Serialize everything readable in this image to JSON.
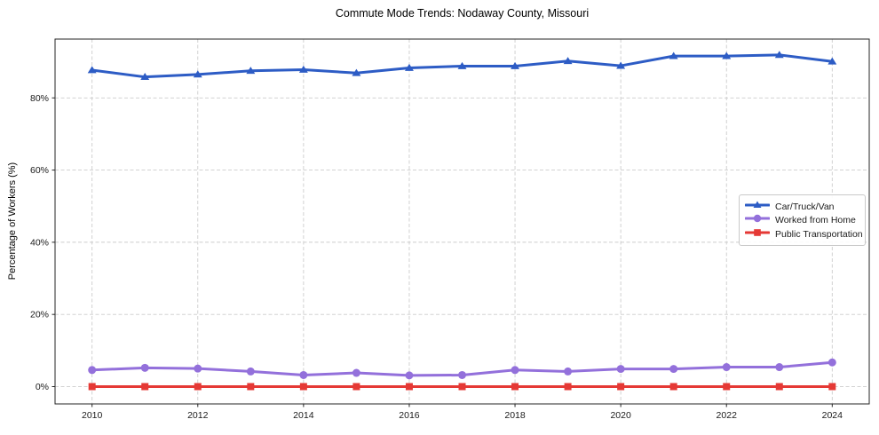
{
  "chart_data": {
    "type": "line",
    "title": "Commute Mode Trends: Nodaway County, Missouri",
    "xlabel": "",
    "ylabel": "Percentage of Workers (%)",
    "x": [
      2010,
      2011,
      2012,
      2013,
      2014,
      2015,
      2016,
      2017,
      2018,
      2019,
      2020,
      2021,
      2022,
      2023,
      2024
    ],
    "series": [
      {
        "name": "Car/Truck/Van",
        "color": "#2d5cc5",
        "marker": "triangle",
        "values": [
          87.7,
          85.8,
          86.5,
          87.5,
          87.8,
          86.9,
          88.3,
          88.8,
          88.8,
          90.2,
          88.9,
          91.6,
          91.6,
          91.9,
          90.1
        ]
      },
      {
        "name": "Worked from Home",
        "color": "#9370db",
        "marker": "circle",
        "values": [
          4.6,
          5.2,
          5.0,
          4.2,
          3.2,
          3.8,
          3.1,
          3.2,
          4.6,
          4.2,
          4.9,
          4.9,
          5.4,
          5.4,
          6.7
        ]
      },
      {
        "name": "Public Transportation",
        "color": "#e53935",
        "marker": "square",
        "values": [
          0.0,
          0.0,
          0.0,
          0.0,
          0.0,
          0.0,
          0.0,
          0.0,
          0.0,
          0.0,
          0.0,
          0.0,
          0.0,
          0.0,
          0.0
        ]
      }
    ],
    "x_ticks": {
      "values": [
        2010,
        2012,
        2014,
        2016,
        2018,
        2020,
        2022,
        2024
      ],
      "labels": [
        "2010",
        "2012",
        "2014",
        "2016",
        "2018",
        "2020",
        "2022",
        "2024"
      ]
    },
    "y_ticks": {
      "values": [
        0,
        20,
        40,
        60,
        80
      ],
      "labels": [
        "0%",
        "20%",
        "40%",
        "60%",
        "80%"
      ]
    },
    "xlim": [
      2009.3,
      2024.7
    ],
    "ylim": [
      -4.8,
      96.3
    ],
    "grid": true,
    "grid_color": "#cccccc",
    "legend_position": "center right"
  }
}
